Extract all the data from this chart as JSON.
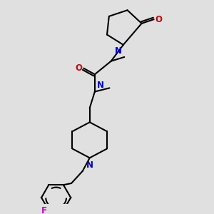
{
  "bg_color": "#e0e0e0",
  "bond_color": "#000000",
  "N_color": "#0000cc",
  "O_color": "#cc0000",
  "F_color": "#cc00cc",
  "line_width": 1.5,
  "font_size": 8.5,
  "fig_size": [
    3.0,
    3.0
  ],
  "dpi": 100,
  "xlim": [
    0,
    10
  ],
  "ylim": [
    0,
    10
  ]
}
